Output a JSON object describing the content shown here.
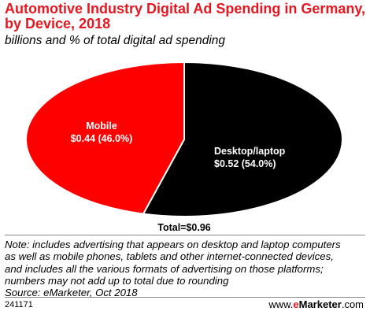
{
  "header": {
    "title_line1": "Automotive Industry Digital Ad Spending in Germany,",
    "title_line2": "by Device, 2018",
    "subtitle": "billions and % of total digital ad spending"
  },
  "chart_data": {
    "type": "pie",
    "title": "Automotive Industry Digital Ad Spending in Germany, by Device, 2018",
    "subtitle": "billions and % of total digital ad spending",
    "slices": [
      {
        "name": "Mobile",
        "value": 0.44,
        "percent": 46.0,
        "value_label": "$0.44 (46.0%)",
        "color": "#ff0000"
      },
      {
        "name": "Desktop/laptop",
        "value": 0.52,
        "percent": 54.0,
        "value_label": "$0.52 (54.0%)",
        "color": "#000000"
      }
    ],
    "total_label": "Total=$0.96"
  },
  "notes": {
    "lines": [
      "Note: includes advertising that appears on desktop and laptop computers",
      "as well as mobile phones, tablets and other internet-connected devices,",
      "and includes all the various formats of advertising on those platforms;",
      "numbers may not add up to total due to rounding",
      "Source: eMarketer, Oct 2018"
    ]
  },
  "footer": {
    "chart_id": "241171",
    "logo_prefix": "www.",
    "logo_e": "e",
    "logo_main": "Marketer",
    "logo_suffix": ".com"
  },
  "colors": {
    "brand_red": "#e8171f",
    "mobile": "#ff0000",
    "desktop": "#000000"
  }
}
